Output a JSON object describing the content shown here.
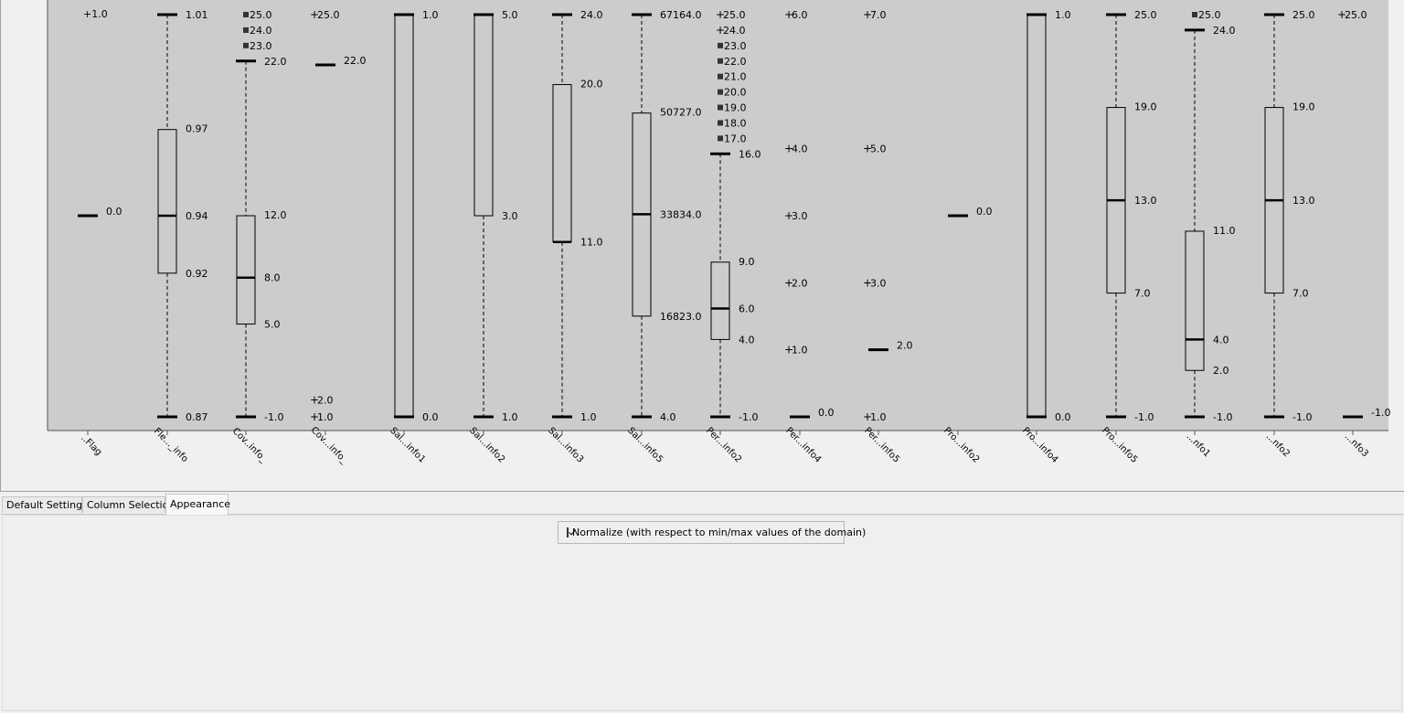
{
  "chart_data": {
    "type": "boxplot",
    "normalized": true,
    "columns": [
      {
        "name": "..Flag",
        "min": 0.0,
        "q1": null,
        "median": null,
        "q3": null,
        "max": null,
        "max_label": "+1.0",
        "outliers": [],
        "extremes": []
      },
      {
        "name": "Fle..._info",
        "min": 0.87,
        "q1": 0.92,
        "median": 0.94,
        "q3": 0.97,
        "max": 1.01,
        "outliers": [],
        "extremes": []
      },
      {
        "name": "Cov..info_",
        "min": -1.0,
        "q1": 5.0,
        "median": 8.0,
        "q3": 12.0,
        "max": 22.0,
        "outliers": [
          25.0,
          24.0,
          23.0
        ],
        "extremes": []
      },
      {
        "name": "Cov...info_",
        "min": 22.0,
        "q1": null,
        "median": null,
        "q3": null,
        "max": null,
        "outliers": [],
        "extremes": [
          25.0,
          2.0,
          1.0
        ]
      },
      {
        "name": "Sal...info1",
        "min": 0.0,
        "q1": 0.0,
        "median": null,
        "q3": 1.0,
        "max": 1.0,
        "outliers": [],
        "extremes": []
      },
      {
        "name": "Sal...info2",
        "min": 1.0,
        "q1": 3.0,
        "median": null,
        "q3": 5.0,
        "max": 5.0,
        "outliers": [],
        "extremes": []
      },
      {
        "name": "Sal...info3",
        "min": 1.0,
        "q1": 11.0,
        "median": 11.0,
        "q3": 20.0,
        "max": 24.0,
        "outliers": [],
        "extremes": []
      },
      {
        "name": "Sal...info5",
        "min": 4.0,
        "q1": 16823.0,
        "median": 33834.0,
        "q3": 50727.0,
        "max": 67164.0,
        "outliers": [],
        "extremes": []
      },
      {
        "name": "Per...info2",
        "min": -1.0,
        "q1": 4.0,
        "median": 6.0,
        "q3": 9.0,
        "max": 16.0,
        "outliers": [
          23.0,
          22.0,
          21.0,
          20.0,
          19.0,
          18.0,
          17.0
        ],
        "extremes": [
          25.0,
          24.0
        ]
      },
      {
        "name": "Per...info4",
        "min": 0.0,
        "q1": null,
        "median": null,
        "q3": null,
        "max": null,
        "outliers": [],
        "extremes": [
          6.0,
          4.0,
          3.0,
          2.0,
          1.0
        ]
      },
      {
        "name": "Per...info5",
        "min": 2.0,
        "q1": null,
        "median": null,
        "q3": null,
        "max": null,
        "outliers": [],
        "extremes": [
          7.0,
          5.0,
          3.0,
          1.0
        ]
      },
      {
        "name": "Pro...info2",
        "min": 0.0,
        "q1": null,
        "median": null,
        "q3": null,
        "max": null,
        "outliers": [],
        "extremes": []
      },
      {
        "name": "Pro...info4",
        "min": 0.0,
        "q1": 0.0,
        "median": null,
        "q3": 1.0,
        "max": 1.0,
        "outliers": [],
        "extremes": []
      },
      {
        "name": "Pro...info5",
        "min": -1.0,
        "q1": 7.0,
        "median": 13.0,
        "q3": 19.0,
        "max": 25.0,
        "outliers": [],
        "extremes": []
      },
      {
        "name": "...nfo1",
        "min": -1.0,
        "q1": 2.0,
        "median": 4.0,
        "q3": 11.0,
        "max": 24.0,
        "outliers": [
          25.0
        ],
        "extremes": []
      },
      {
        "name": "...nfo2",
        "min": -1.0,
        "q1": 7.0,
        "median": 13.0,
        "q3": 19.0,
        "max": 25.0,
        "outliers": [],
        "extremes": []
      },
      {
        "name": "...nfo3",
        "min": -1.0,
        "q1": null,
        "median": null,
        "q3": null,
        "max": null,
        "outliers": [],
        "extremes": [
          25.0
        ]
      }
    ]
  },
  "tabs": [
    {
      "label": "Default Settings",
      "active": false
    },
    {
      "label": "Column Selection",
      "active": false
    },
    {
      "label": "Appearance",
      "active": true
    }
  ],
  "appearance": {
    "normalize_checked": true,
    "normalize_label": "Normalize (with respect to min/max values of the domain)"
  },
  "colors": {
    "plot_background": "#cccccc",
    "panel_background": "#f0f0f0"
  }
}
